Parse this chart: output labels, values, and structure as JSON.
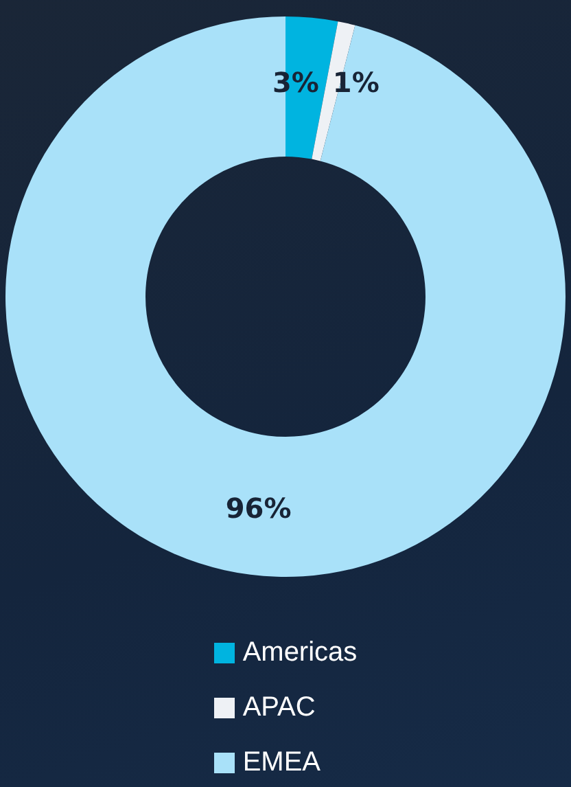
{
  "chart_data": {
    "type": "donut",
    "categories": [
      "Americas",
      "APAC",
      "EMEA"
    ],
    "values": [
      3,
      1,
      96
    ],
    "colors": [
      "#00b4e0",
      "#eef1f5",
      "#a9e1f9"
    ],
    "value_labels": [
      "3%",
      "1%",
      "96%"
    ],
    "legend": "bottom"
  }
}
